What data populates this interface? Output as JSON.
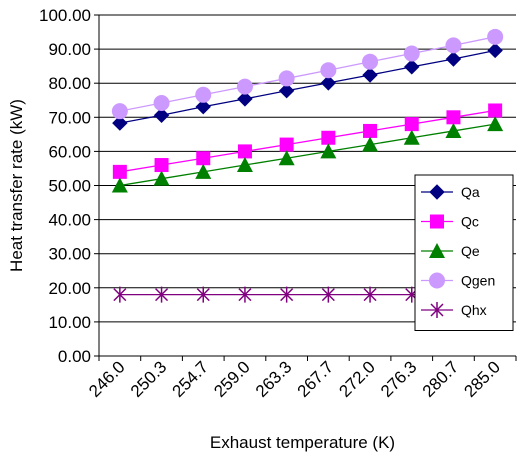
{
  "chart_data": {
    "type": "line",
    "xlabel": "Exhaust temperature (K)",
    "ylabel": "Heat transfer rate (kW)",
    "ylim": [
      0,
      100
    ],
    "y_ticks": [
      "0.00",
      "10.00",
      "20.00",
      "30.00",
      "40.00",
      "50.00",
      "60.00",
      "70.00",
      "80.00",
      "90.00",
      "100.00"
    ],
    "categories": [
      "246.0",
      "250.3",
      "254.7",
      "259.0",
      "263.3",
      "267.7",
      "272.0",
      "276.3",
      "280.7",
      "285.0"
    ],
    "grid": "horizontal",
    "legend_position": "right",
    "series": [
      {
        "name": "Qa",
        "color": "#000080",
        "marker": "diamond",
        "values": [
          68.3,
          70.6,
          73.1,
          75.4,
          77.8,
          80.1,
          82.4,
          84.8,
          87.1,
          89.6
        ]
      },
      {
        "name": "Qc",
        "color": "#ff00ff",
        "marker": "square",
        "values": [
          54.0,
          56.0,
          58.0,
          60.0,
          62.0,
          64.0,
          66.0,
          68.0,
          70.0,
          72.0
        ]
      },
      {
        "name": "Qe",
        "color": "#008000",
        "marker": "triangle",
        "values": [
          50.0,
          52.0,
          54.0,
          56.0,
          58.0,
          60.0,
          62.0,
          64.0,
          66.0,
          68.0
        ]
      },
      {
        "name": "Qgen",
        "color": "#cc99ff",
        "marker": "circle",
        "values": [
          71.8,
          74.2,
          76.6,
          79.0,
          81.4,
          83.8,
          86.3,
          88.7,
          91.1,
          93.6
        ]
      },
      {
        "name": "Qhx",
        "color": "#800080",
        "marker": "asterisk",
        "values": [
          18.0,
          18.0,
          18.0,
          18.0,
          18.0,
          18.0,
          18.0,
          18.0,
          18.0,
          18.0
        ]
      }
    ]
  }
}
